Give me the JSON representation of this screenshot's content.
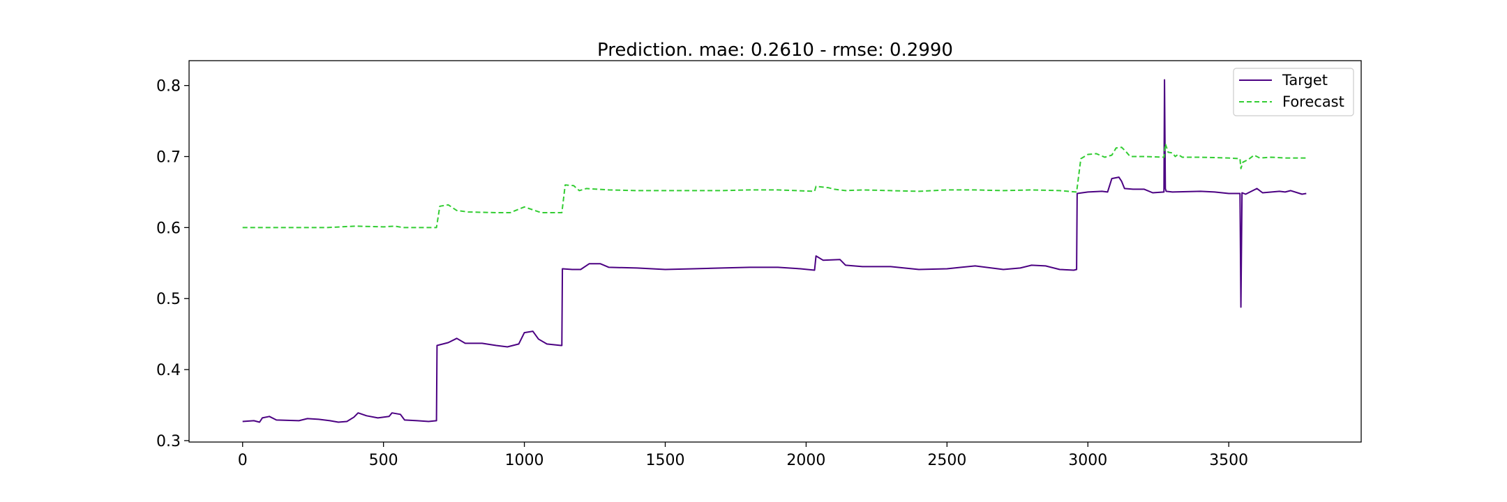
{
  "chart_data": {
    "type": "line",
    "title": "Prediction. mae: 0.2610 - rmse: 0.2990",
    "xlabel": "",
    "ylabel": "",
    "xlim": [
      -190,
      3970
    ],
    "ylim": [
      0.298,
      0.835
    ],
    "xticks": [
      0,
      500,
      1000,
      1500,
      2000,
      2500,
      3000,
      3500
    ],
    "xtick_labels": [
      "0",
      "500",
      "1000",
      "1500",
      "2000",
      "2500",
      "3000",
      "3500"
    ],
    "yticks": [
      0.3,
      0.4,
      0.5,
      0.6,
      0.7,
      0.8
    ],
    "ytick_labels": [
      "0.3",
      "0.4",
      "0.5",
      "0.6",
      "0.7",
      "0.8"
    ],
    "grid": false,
    "legend_position": "upper right",
    "series": [
      {
        "name": "Target",
        "color": "#4b0082",
        "style": "solid",
        "points": [
          [
            0,
            0.327
          ],
          [
            40,
            0.328
          ],
          [
            60,
            0.326
          ],
          [
            70,
            0.332
          ],
          [
            95,
            0.334
          ],
          [
            120,
            0.329
          ],
          [
            200,
            0.328
          ],
          [
            230,
            0.331
          ],
          [
            270,
            0.33
          ],
          [
            310,
            0.328
          ],
          [
            340,
            0.326
          ],
          [
            370,
            0.327
          ],
          [
            395,
            0.333
          ],
          [
            410,
            0.339
          ],
          [
            440,
            0.335
          ],
          [
            480,
            0.332
          ],
          [
            520,
            0.334
          ],
          [
            530,
            0.339
          ],
          [
            560,
            0.337
          ],
          [
            575,
            0.329
          ],
          [
            620,
            0.328
          ],
          [
            660,
            0.327
          ],
          [
            688,
            0.328
          ],
          [
            690,
            0.434
          ],
          [
            730,
            0.438
          ],
          [
            760,
            0.444
          ],
          [
            790,
            0.437
          ],
          [
            850,
            0.437
          ],
          [
            900,
            0.434
          ],
          [
            940,
            0.432
          ],
          [
            980,
            0.436
          ],
          [
            1000,
            0.452
          ],
          [
            1030,
            0.454
          ],
          [
            1050,
            0.443
          ],
          [
            1080,
            0.436
          ],
          [
            1130,
            0.434
          ],
          [
            1133,
            0.434
          ],
          [
            1135,
            0.542
          ],
          [
            1170,
            0.541
          ],
          [
            1200,
            0.541
          ],
          [
            1230,
            0.549
          ],
          [
            1270,
            0.549
          ],
          [
            1300,
            0.544
          ],
          [
            1400,
            0.543
          ],
          [
            1500,
            0.541
          ],
          [
            1600,
            0.542
          ],
          [
            1700,
            0.543
          ],
          [
            1800,
            0.544
          ],
          [
            1900,
            0.544
          ],
          [
            1980,
            0.542
          ],
          [
            2030,
            0.54
          ],
          [
            2035,
            0.56
          ],
          [
            2060,
            0.554
          ],
          [
            2120,
            0.555
          ],
          [
            2140,
            0.547
          ],
          [
            2200,
            0.545
          ],
          [
            2300,
            0.545
          ],
          [
            2400,
            0.541
          ],
          [
            2500,
            0.542
          ],
          [
            2550,
            0.544
          ],
          [
            2600,
            0.546
          ],
          [
            2700,
            0.541
          ],
          [
            2760,
            0.543
          ],
          [
            2800,
            0.547
          ],
          [
            2850,
            0.546
          ],
          [
            2900,
            0.541
          ],
          [
            2950,
            0.54
          ],
          [
            2960,
            0.541
          ],
          [
            2962,
            0.648
          ],
          [
            3000,
            0.65
          ],
          [
            3050,
            0.651
          ],
          [
            3070,
            0.65
          ],
          [
            3085,
            0.669
          ],
          [
            3110,
            0.671
          ],
          [
            3120,
            0.665
          ],
          [
            3130,
            0.655
          ],
          [
            3160,
            0.654
          ],
          [
            3200,
            0.654
          ],
          [
            3230,
            0.649
          ],
          [
            3270,
            0.65
          ],
          [
            3272,
            0.808
          ],
          [
            3275,
            0.655
          ],
          [
            3278,
            0.651
          ],
          [
            3300,
            0.65
          ],
          [
            3400,
            0.651
          ],
          [
            3450,
            0.65
          ],
          [
            3500,
            0.648
          ],
          [
            3540,
            0.648
          ],
          [
            3543,
            0.488
          ],
          [
            3547,
            0.649
          ],
          [
            3560,
            0.647
          ],
          [
            3600,
            0.655
          ],
          [
            3620,
            0.649
          ],
          [
            3680,
            0.651
          ],
          [
            3700,
            0.65
          ],
          [
            3720,
            0.652
          ],
          [
            3760,
            0.647
          ],
          [
            3775,
            0.648
          ]
        ]
      },
      {
        "name": "Forecast",
        "color": "#32cd32",
        "style": "dashed",
        "points": [
          [
            0,
            0.6
          ],
          [
            100,
            0.6
          ],
          [
            200,
            0.6
          ],
          [
            300,
            0.6
          ],
          [
            400,
            0.602
          ],
          [
            500,
            0.601
          ],
          [
            540,
            0.602
          ],
          [
            570,
            0.6
          ],
          [
            688,
            0.6
          ],
          [
            700,
            0.63
          ],
          [
            730,
            0.632
          ],
          [
            760,
            0.624
          ],
          [
            800,
            0.622
          ],
          [
            900,
            0.621
          ],
          [
            950,
            0.621
          ],
          [
            1000,
            0.629
          ],
          [
            1030,
            0.625
          ],
          [
            1060,
            0.621
          ],
          [
            1133,
            0.621
          ],
          [
            1145,
            0.66
          ],
          [
            1175,
            0.659
          ],
          [
            1195,
            0.652
          ],
          [
            1220,
            0.655
          ],
          [
            1300,
            0.653
          ],
          [
            1400,
            0.652
          ],
          [
            1500,
            0.652
          ],
          [
            1600,
            0.652
          ],
          [
            1700,
            0.652
          ],
          [
            1800,
            0.653
          ],
          [
            1900,
            0.653
          ],
          [
            2030,
            0.651
          ],
          [
            2035,
            0.658
          ],
          [
            2080,
            0.656
          ],
          [
            2100,
            0.654
          ],
          [
            2140,
            0.652
          ],
          [
            2200,
            0.653
          ],
          [
            2300,
            0.652
          ],
          [
            2400,
            0.651
          ],
          [
            2500,
            0.653
          ],
          [
            2600,
            0.653
          ],
          [
            2700,
            0.652
          ],
          [
            2800,
            0.653
          ],
          [
            2900,
            0.652
          ],
          [
            2960,
            0.65
          ],
          [
            2975,
            0.697
          ],
          [
            3000,
            0.703
          ],
          [
            3030,
            0.704
          ],
          [
            3060,
            0.699
          ],
          [
            3085,
            0.702
          ],
          [
            3100,
            0.712
          ],
          [
            3120,
            0.713
          ],
          [
            3135,
            0.707
          ],
          [
            3150,
            0.7
          ],
          [
            3200,
            0.7
          ],
          [
            3270,
            0.699
          ],
          [
            3275,
            0.718
          ],
          [
            3285,
            0.706
          ],
          [
            3300,
            0.705
          ],
          [
            3310,
            0.7
          ],
          [
            3320,
            0.703
          ],
          [
            3335,
            0.699
          ],
          [
            3400,
            0.699
          ],
          [
            3500,
            0.698
          ],
          [
            3540,
            0.697
          ],
          [
            3543,
            0.683
          ],
          [
            3550,
            0.692
          ],
          [
            3570,
            0.696
          ],
          [
            3590,
            0.702
          ],
          [
            3610,
            0.698
          ],
          [
            3650,
            0.699
          ],
          [
            3700,
            0.698
          ],
          [
            3775,
            0.698
          ]
        ]
      }
    ]
  }
}
